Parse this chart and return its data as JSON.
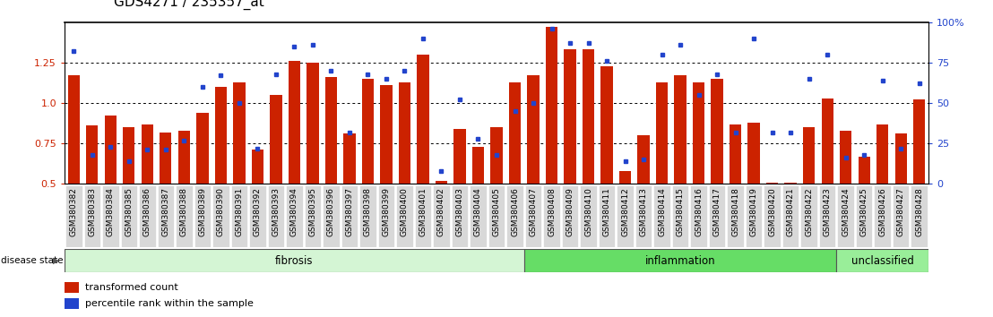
{
  "title": "GDS4271 / 235357_at",
  "samples": [
    "GSM380382",
    "GSM380383",
    "GSM380384",
    "GSM380385",
    "GSM380386",
    "GSM380387",
    "GSM380388",
    "GSM380389",
    "GSM380390",
    "GSM380391",
    "GSM380392",
    "GSM380393",
    "GSM380394",
    "GSM380395",
    "GSM380396",
    "GSM380397",
    "GSM380398",
    "GSM380399",
    "GSM380400",
    "GSM380401",
    "GSM380402",
    "GSM380403",
    "GSM380404",
    "GSM380405",
    "GSM380406",
    "GSM380407",
    "GSM380408",
    "GSM380409",
    "GSM380410",
    "GSM380411",
    "GSM380412",
    "GSM380413",
    "GSM380414",
    "GSM380415",
    "GSM380416",
    "GSM380417",
    "GSM380418",
    "GSM380419",
    "GSM380420",
    "GSM380421",
    "GSM380422",
    "GSM380423",
    "GSM380424",
    "GSM380425",
    "GSM380426",
    "GSM380427",
    "GSM380428"
  ],
  "bar_heights": [
    1.17,
    0.86,
    0.92,
    0.85,
    0.87,
    0.82,
    0.83,
    0.94,
    1.1,
    1.13,
    0.71,
    1.05,
    1.26,
    1.25,
    1.16,
    0.81,
    1.15,
    1.11,
    1.13,
    1.3,
    0.52,
    0.84,
    0.73,
    0.85,
    1.13,
    1.17,
    1.47,
    1.33,
    1.33,
    1.23,
    0.58,
    0.8,
    1.13,
    1.17,
    1.13,
    1.15,
    0.87,
    0.88,
    0.51,
    0.51,
    0.85,
    1.03,
    0.83,
    0.67,
    0.87,
    0.81,
    1.02
  ],
  "percentile_ranks": [
    82,
    18,
    23,
    14,
    21,
    21,
    27,
    60,
    67,
    50,
    22,
    68,
    85,
    86,
    70,
    32,
    68,
    65,
    70,
    90,
    8,
    52,
    28,
    18,
    45,
    50,
    96,
    87,
    87,
    76,
    14,
    15,
    80,
    86,
    55,
    68,
    32,
    90,
    32,
    32,
    65,
    80,
    16,
    18,
    64,
    22,
    62
  ],
  "disease_groups": [
    {
      "label": "fibrosis",
      "start": 0,
      "end": 25,
      "color": "#d4f5d4"
    },
    {
      "label": "inflammation",
      "start": 25,
      "end": 42,
      "color": "#66dd66"
    },
    {
      "label": "unclassified",
      "start": 42,
      "end": 47,
      "color": "#99ee99"
    }
  ],
  "ylim": [
    0.5,
    1.5
  ],
  "yticks_left": [
    0.5,
    0.75,
    1.0,
    1.25
  ],
  "yticks_right": [
    0,
    25,
    50,
    75,
    100
  ],
  "bar_color": "#cc2200",
  "dot_color": "#2244cc",
  "plot_bg": "#ffffff",
  "title_fontsize": 11,
  "xtick_fontsize": 6.5,
  "ytick_fontsize": 8,
  "legend_fontsize": 8
}
